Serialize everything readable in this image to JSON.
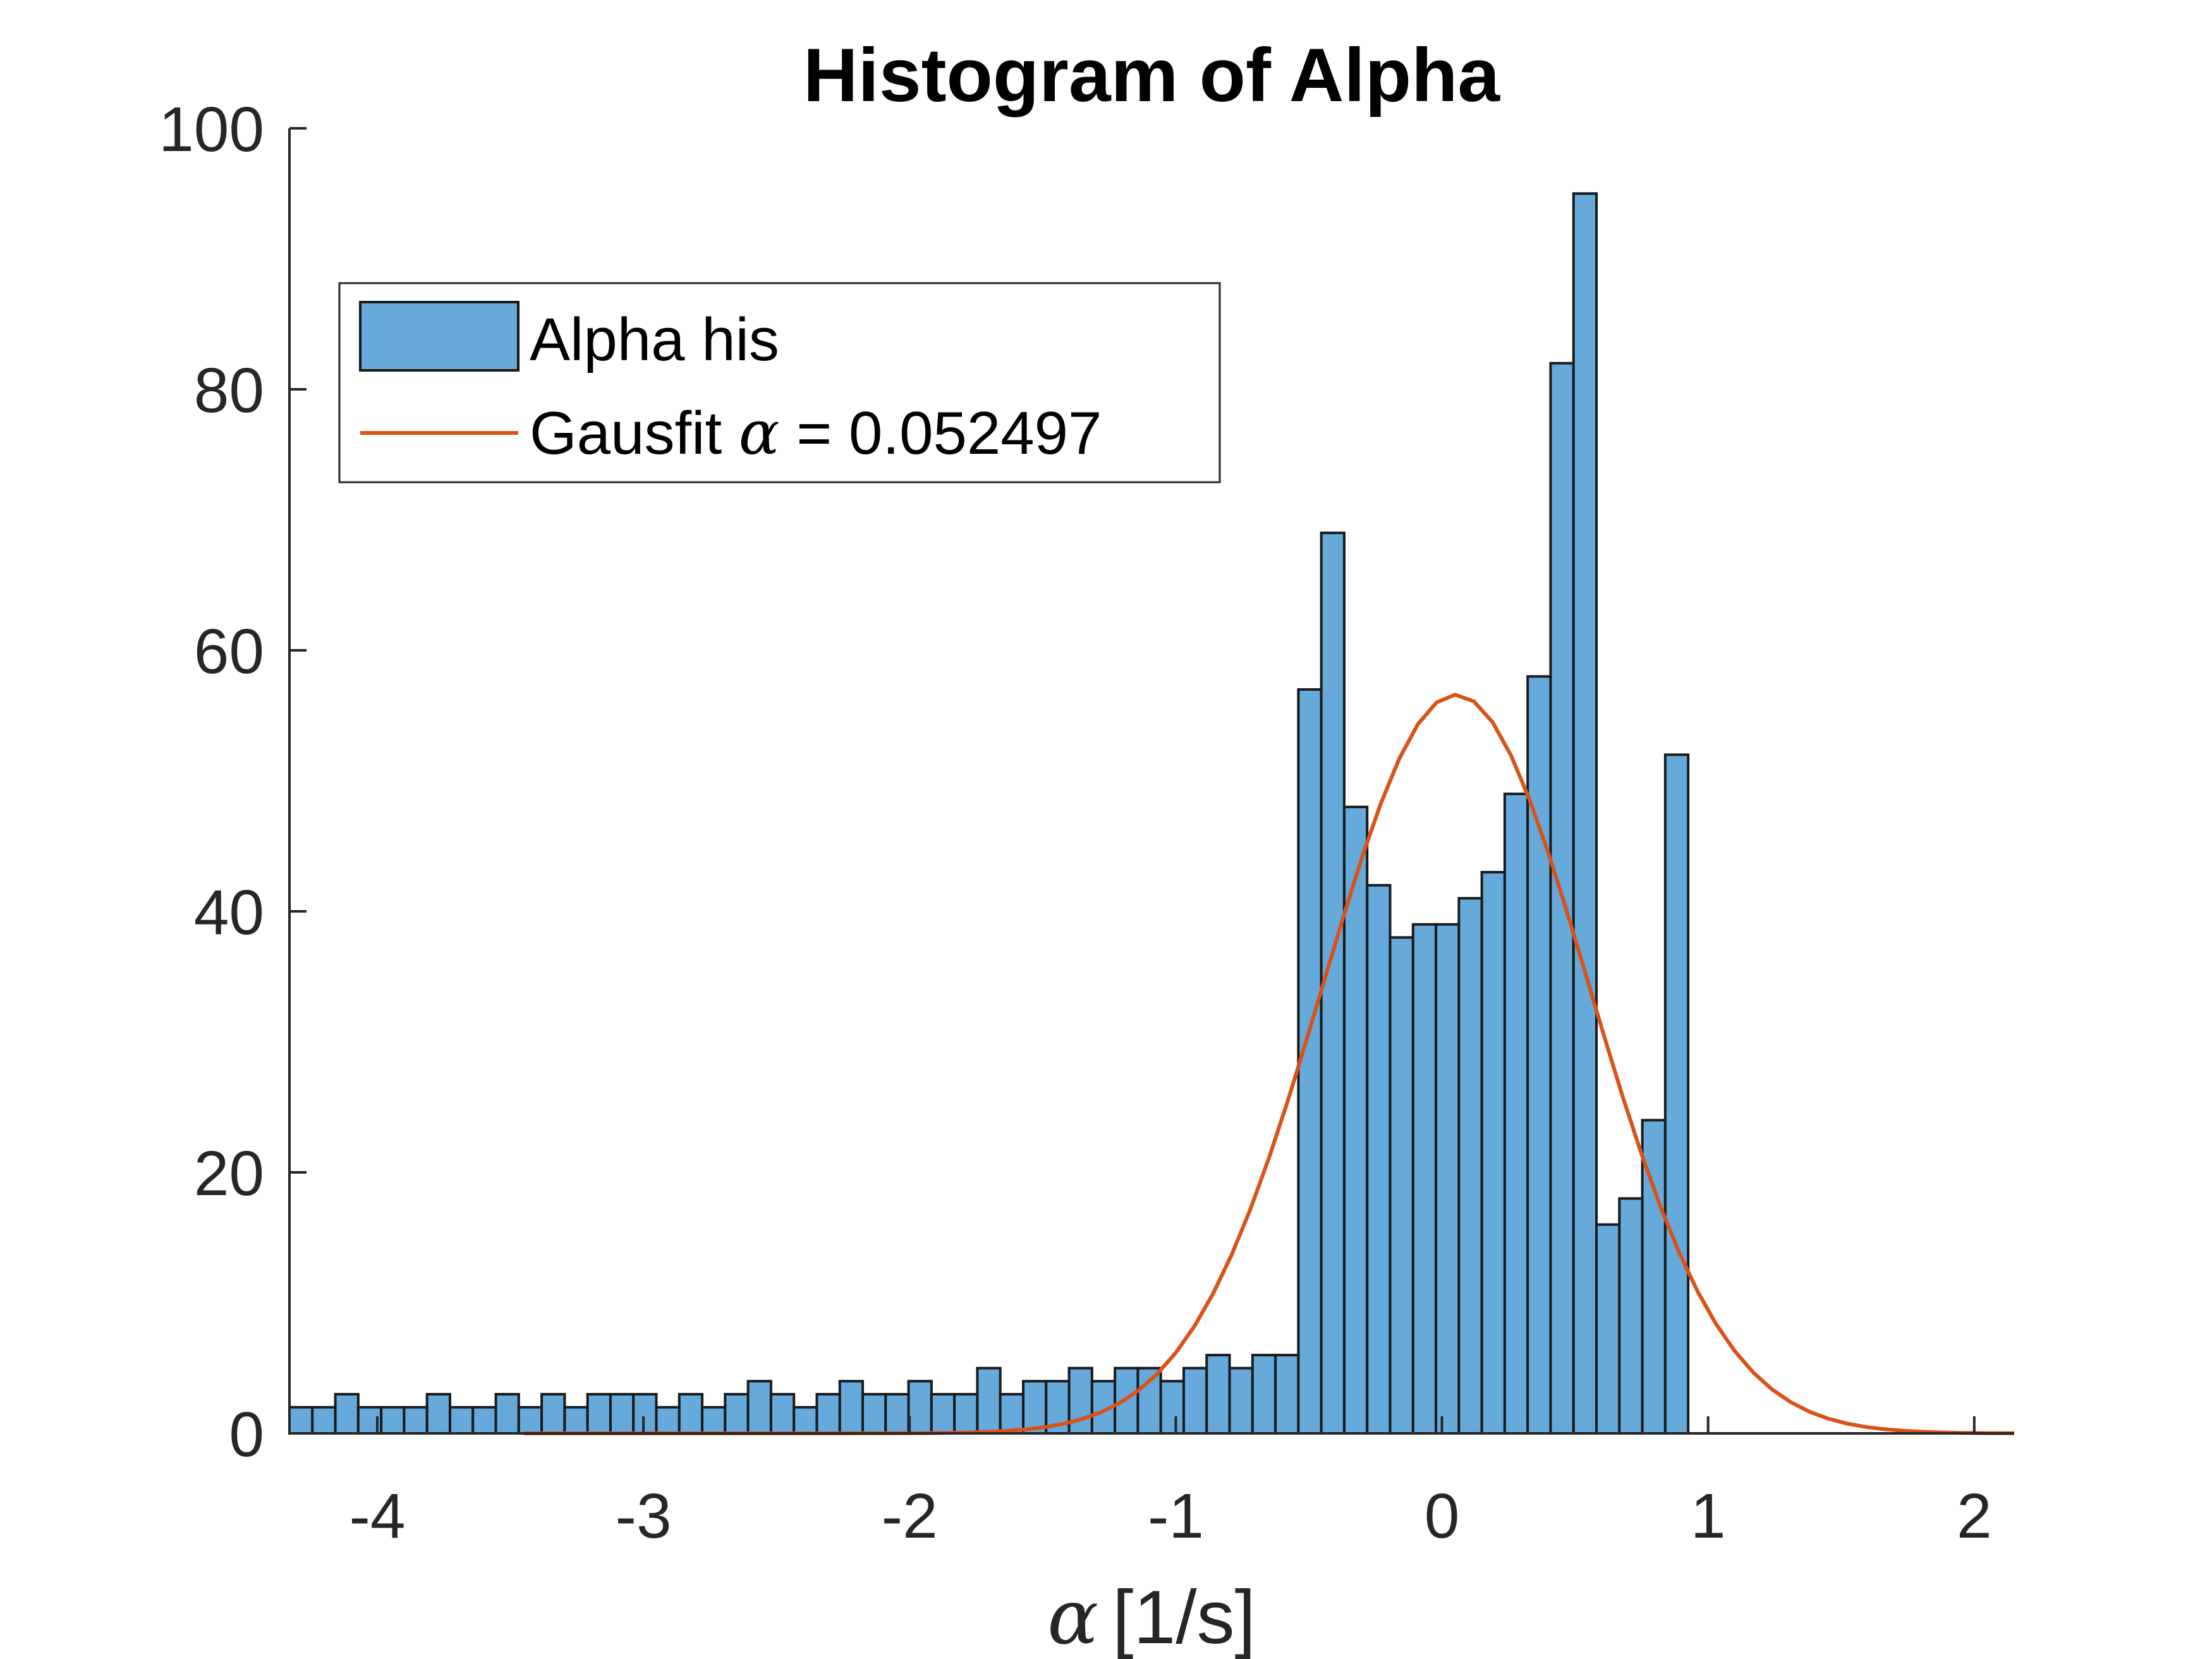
{
  "chart_data": {
    "type": "bar",
    "title": "Histogram of Alpha",
    "xlabel_symbol": "α",
    "xlabel_unit": "[1/s]",
    "ylabel": "",
    "xlim": [
      -4.33,
      2.15
    ],
    "ylim": [
      0,
      100
    ],
    "xticks": [
      -4,
      -3,
      -2,
      -1,
      0,
      1,
      2
    ],
    "yticks": [
      0,
      20,
      40,
      60,
      80,
      100
    ],
    "grid": false,
    "legend_position": "top-left",
    "bin_start": -4.33,
    "bin_width": 0.08615,
    "series": [
      {
        "name": "Alpha his",
        "kind": "histogram",
        "color": "#66AADB",
        "edge_color": "#1A1A1A",
        "values": [
          2,
          2,
          3,
          2,
          2,
          2,
          3,
          2,
          2,
          3,
          2,
          3,
          2,
          3,
          3,
          3,
          2,
          3,
          2,
          3,
          4,
          3,
          2,
          3,
          4,
          3,
          3,
          4,
          3,
          3,
          5,
          3,
          4,
          4,
          5,
          4,
          5,
          5,
          4,
          5,
          6,
          5,
          6,
          6,
          57,
          69,
          48,
          42,
          38,
          39,
          39,
          41,
          43,
          49,
          58,
          82,
          95,
          16,
          18,
          24,
          52
        ]
      },
      {
        "name_prefix": "Gausfit ",
        "name_symbol": "α",
        "name_suffix": " = 0.052497",
        "kind": "gaussian",
        "color": "#D95319",
        "amplitude": 56.6,
        "mu": 0.052497,
        "sigma": 0.5,
        "x_range": [
          -3.45,
          2.15
        ]
      }
    ]
  }
}
